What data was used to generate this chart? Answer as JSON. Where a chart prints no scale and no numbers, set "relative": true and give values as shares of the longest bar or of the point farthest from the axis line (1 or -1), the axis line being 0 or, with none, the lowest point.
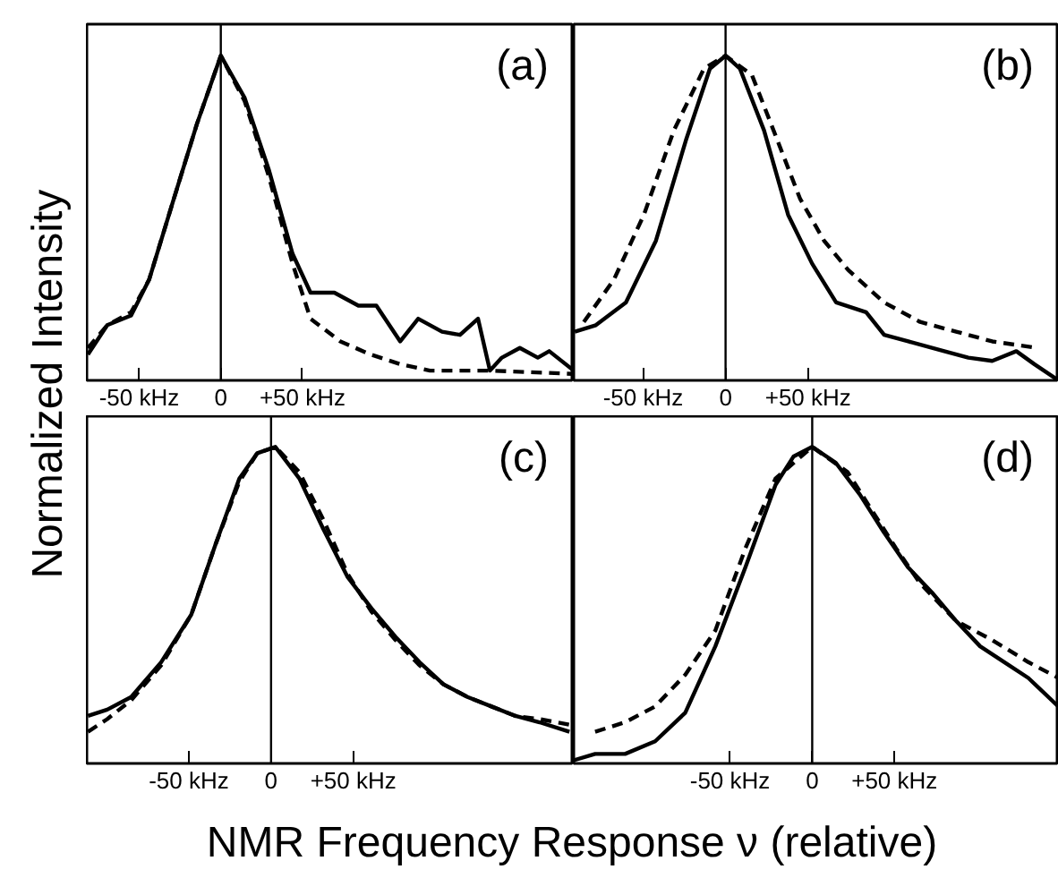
{
  "chart_data": [
    {
      "type": "line",
      "title": "(a)",
      "ylabel": "Normalized Intensity",
      "relative": true,
      "xlim": [
        -82,
        216
      ],
      "xticks": [
        {
          "value": -50,
          "label": "-50 kHz"
        },
        {
          "value": 0,
          "label": "0"
        },
        {
          "value": 50,
          "label": "+50 kHz"
        }
      ],
      "ref_lines": [
        {
          "axis": "x",
          "value": 0,
          "color": "#000000"
        }
      ],
      "series": [
        {
          "color": "#000000",
          "line_style": "solid",
          "x": [
            -81.3,
            -69.5,
            -54.9,
            -43.9,
            -29.3,
            -14.6,
            0,
            14.6,
            29.3,
            43.9,
            54.9,
            69.5,
            84.2,
            95.2,
            109.8,
            120.8,
            135.4,
            146.4,
            157.4,
            164.7,
            172,
            183,
            194,
            201,
            216
          ],
          "values": [
            0.08,
            0.17,
            0.2,
            0.31,
            0.55,
            0.79,
            1,
            0.87,
            0.65,
            0.39,
            0.27,
            0.27,
            0.23,
            0.23,
            0.12,
            0.19,
            0.15,
            0.14,
            0.19,
            0.03,
            0.07,
            0.1,
            0.07,
            0.09,
            0.03
          ]
        },
        {
          "color": "#000000",
          "line_style": "dashed",
          "x": [
            -81.3,
            -69.5,
            -54.9,
            -43.9,
            -29.3,
            -14.6,
            0,
            14.6,
            29.3,
            43.9,
            54.9,
            73.2,
            91.5,
            109.8,
            128,
            164.7,
            216
          ],
          "values": [
            0.1,
            0.17,
            0.21,
            0.31,
            0.55,
            0.79,
            1,
            0.86,
            0.63,
            0.36,
            0.19,
            0.12,
            0.08,
            0.05,
            0.03,
            0.03,
            0.02
          ]
        }
      ]
    },
    {
      "type": "line",
      "title": "(b)",
      "relative": true,
      "xlim": [
        -92,
        202
      ],
      "xticks": [
        {
          "value": -50,
          "label": "-50 kHz"
        },
        {
          "value": 0,
          "label": "0"
        },
        {
          "value": 50,
          "label": "+50 kHz"
        }
      ],
      "ref_lines": [
        {
          "axis": "x",
          "value": 0,
          "color": "#000000"
        }
      ],
      "series": [
        {
          "color": "#000000",
          "line_style": "solid",
          "x": [
            -91.4,
            -78.6,
            -60.4,
            -42.2,
            -24,
            -9.5,
            0,
            8.7,
            23.3,
            37.9,
            52.4,
            67,
            85.2,
            96.1,
            110.7,
            132.5,
            147.1,
            161.6,
            176.2,
            187.1,
            201.7
          ],
          "values": [
            0.15,
            0.17,
            0.24,
            0.43,
            0.74,
            0.96,
            1,
            0.96,
            0.77,
            0.51,
            0.36,
            0.24,
            0.21,
            0.14,
            0.12,
            0.09,
            0.07,
            0.06,
            0.09,
            0.05,
            0
          ]
        },
        {
          "color": "#000000",
          "line_style": "dashed",
          "x": [
            -85.9,
            -67.7,
            -49.5,
            -31.3,
            -13.1,
            0,
            16,
            30.6,
            45.1,
            59.7,
            74.3,
            96.1,
            117.9,
            139.8,
            161.6,
            188.9
          ],
          "values": [
            0.18,
            0.31,
            0.51,
            0.77,
            0.96,
            1,
            0.94,
            0.75,
            0.56,
            0.43,
            0.34,
            0.24,
            0.18,
            0.15,
            0.12,
            0.1
          ]
        }
      ]
    },
    {
      "type": "line",
      "title": "(c)",
      "xlabel": "NMR Frequency Response ν (relative)",
      "relative": true,
      "xlim": [
        -112,
        184
      ],
      "xticks": [
        {
          "value": -50,
          "label": "-50 kHz"
        },
        {
          "value": 0,
          "label": "0"
        },
        {
          "value": 50,
          "label": "+50 kHz"
        }
      ],
      "ref_lines": [
        {
          "axis": "x",
          "value": 0,
          "color": "#000000"
        }
      ],
      "series": [
        {
          "color": "#000000",
          "line_style": "solid",
          "x": [
            -111.3,
            -99.6,
            -85,
            -66.8,
            -48.5,
            -33.9,
            -19.3,
            -8.4,
            2.6,
            17.2,
            31.8,
            46.4,
            61,
            75.6,
            90.2,
            104.8,
            119.4,
            134,
            148.6,
            163.2,
            181.4
          ],
          "values": [
            0.15,
            0.17,
            0.21,
            0.32,
            0.47,
            0.69,
            0.9,
            0.98,
            1,
            0.9,
            0.74,
            0.59,
            0.49,
            0.4,
            0.32,
            0.25,
            0.21,
            0.18,
            0.15,
            0.13,
            0.1
          ]
        },
        {
          "color": "#000000",
          "line_style": "dashed",
          "x": [
            -111.3,
            -99.6,
            -85,
            -66.8,
            -48.5,
            -33.9,
            -19.3,
            -8.4,
            2.6,
            17.2,
            31.8,
            46.4,
            61,
            75.6,
            90.2,
            104.8,
            119.4,
            134,
            148.6,
            163.2,
            184
          ],
          "values": [
            0.1,
            0.14,
            0.2,
            0.31,
            0.47,
            0.69,
            0.89,
            0.98,
            1,
            0.92,
            0.77,
            0.6,
            0.48,
            0.39,
            0.31,
            0.25,
            0.21,
            0.18,
            0.15,
            0.14,
            0.12
          ]
        }
      ]
    },
    {
      "type": "line",
      "title": "(d)",
      "relative": true,
      "xlim": [
        -145,
        150
      ],
      "xticks": [
        {
          "value": -50,
          "label": "-50 kHz"
        },
        {
          "value": 0,
          "label": "0"
        },
        {
          "value": 50,
          "label": "+50 kHz"
        }
      ],
      "ref_lines": [
        {
          "axis": "x",
          "value": 0,
          "color": "#000000"
        }
      ],
      "series": [
        {
          "color": "#000000",
          "line_style": "solid",
          "x": [
            -145,
            -132,
            -113.8,
            -95.5,
            -77.2,
            -58.9,
            -40.6,
            -22.3,
            -11.3,
            0,
            14.3,
            28.9,
            43.6,
            58.2,
            72.8,
            87.5,
            102.1,
            116.8,
            131.4,
            149.7
          ],
          "values": [
            0.01,
            0.03,
            0.03,
            0.07,
            0.16,
            0.37,
            0.62,
            0.88,
            0.97,
            1,
            0.95,
            0.85,
            0.73,
            0.62,
            0.54,
            0.45,
            0.37,
            0.32,
            0.27,
            0.18
          ]
        },
        {
          "color": "#000000",
          "line_style": "dashed",
          "x": [
            -132,
            -113.8,
            -95.5,
            -77.2,
            -58.9,
            -40.6,
            -22.3,
            0,
            21.6,
            36.2,
            50.9,
            65.5,
            87.5,
            109.4,
            131.4,
            149.7
          ],
          "values": [
            0.1,
            0.13,
            0.18,
            0.28,
            0.42,
            0.68,
            0.9,
            1,
            0.92,
            0.8,
            0.68,
            0.57,
            0.45,
            0.39,
            0.32,
            0.27
          ]
        }
      ]
    }
  ]
}
